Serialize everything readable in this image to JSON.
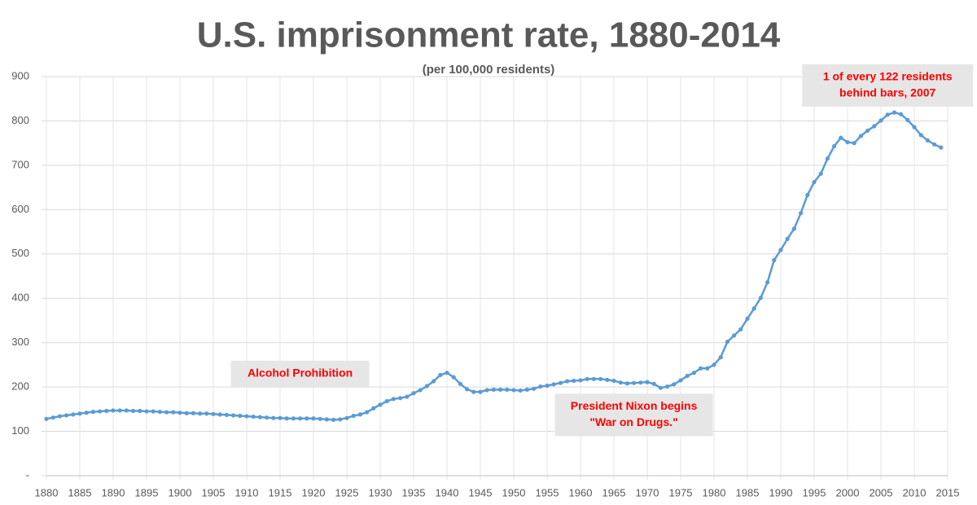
{
  "chart_data": {
    "type": "line",
    "title": "U.S. imprisonment rate, 1880-2014",
    "subtitle": "(per 100,000 residents)",
    "x": [
      1880,
      1881,
      1882,
      1883,
      1884,
      1885,
      1886,
      1887,
      1888,
      1889,
      1890,
      1891,
      1892,
      1893,
      1894,
      1895,
      1896,
      1897,
      1898,
      1899,
      1900,
      1901,
      1902,
      1903,
      1904,
      1905,
      1906,
      1907,
      1908,
      1909,
      1910,
      1911,
      1912,
      1913,
      1914,
      1915,
      1916,
      1917,
      1918,
      1919,
      1920,
      1921,
      1922,
      1923,
      1924,
      1925,
      1926,
      1927,
      1928,
      1929,
      1930,
      1931,
      1932,
      1933,
      1934,
      1935,
      1936,
      1937,
      1938,
      1939,
      1940,
      1941,
      1942,
      1943,
      1944,
      1945,
      1946,
      1947,
      1948,
      1949,
      1950,
      1951,
      1952,
      1953,
      1954,
      1955,
      1956,
      1957,
      1958,
      1959,
      1960,
      1961,
      1962,
      1963,
      1964,
      1965,
      1966,
      1967,
      1968,
      1969,
      1970,
      1971,
      1972,
      1973,
      1974,
      1975,
      1976,
      1977,
      1978,
      1979,
      1980,
      1981,
      1982,
      1983,
      1984,
      1985,
      1986,
      1987,
      1988,
      1989,
      1990,
      1991,
      1992,
      1993,
      1994,
      1995,
      1996,
      1997,
      1998,
      1999,
      2000,
      2001,
      2002,
      2003,
      2004,
      2005,
      2006,
      2007,
      2008,
      2009,
      2010,
      2011,
      2012,
      2013,
      2014
    ],
    "series": [
      {
        "color": "#5b9bd5",
        "values": [
          128,
          131,
          134,
          136,
          138,
          140,
          142,
          144,
          145,
          146,
          147,
          147,
          147,
          146,
          146,
          145,
          145,
          144,
          143,
          143,
          142,
          141,
          141,
          140,
          140,
          139,
          138,
          137,
          136,
          135,
          134,
          133,
          132,
          131,
          130,
          130,
          129,
          129,
          129,
          129,
          129,
          128,
          127,
          126,
          127,
          130,
          135,
          138,
          143,
          152,
          160,
          168,
          173,
          175,
          178,
          186,
          193,
          202,
          213,
          227,
          232,
          222,
          207,
          195,
          189,
          189,
          193,
          194,
          194,
          194,
          193,
          192,
          194,
          196,
          201,
          203,
          206,
          209,
          213,
          214,
          215,
          218,
          218,
          218,
          216,
          214,
          210,
          208,
          209,
          210,
          211,
          207,
          198,
          201,
          206,
          215,
          225,
          232,
          242,
          242,
          250,
          267,
          302,
          316,
          330,
          354,
          377,
          401,
          436,
          486,
          509,
          534,
          557,
          592,
          633,
          662,
          681,
          715,
          743,
          762,
          752,
          750,
          766,
          778,
          788,
          801,
          814,
          819,
          815,
          802,
          786,
          768,
          756,
          747,
          740
        ]
      }
    ],
    "xlim": [
      1880,
      2015
    ],
    "xticks": [
      1880,
      1885,
      1890,
      1895,
      1900,
      1905,
      1910,
      1915,
      1920,
      1925,
      1930,
      1935,
      1940,
      1945,
      1950,
      1955,
      1960,
      1965,
      1970,
      1975,
      1980,
      1985,
      1990,
      1995,
      2000,
      2005,
      2010,
      2015
    ],
    "ylim": [
      0,
      900
    ],
    "yticks": [
      {
        "value": 0,
        "label": "-"
      },
      100,
      200,
      300,
      400,
      500,
      600,
      700,
      800,
      900
    ],
    "grid": true,
    "annotations": [
      {
        "lines": [
          "Alcohol Prohibition"
        ],
        "x": 1918,
        "y": 230
      },
      {
        "lines": [
          "President Nixon begins",
          "\"War on Drugs.\""
        ],
        "x": 1968,
        "y": 137
      },
      {
        "lines": [
          "1 of every 122 residents",
          "behind bars, 2007"
        ],
        "x": 2006,
        "y": 880
      }
    ]
  }
}
